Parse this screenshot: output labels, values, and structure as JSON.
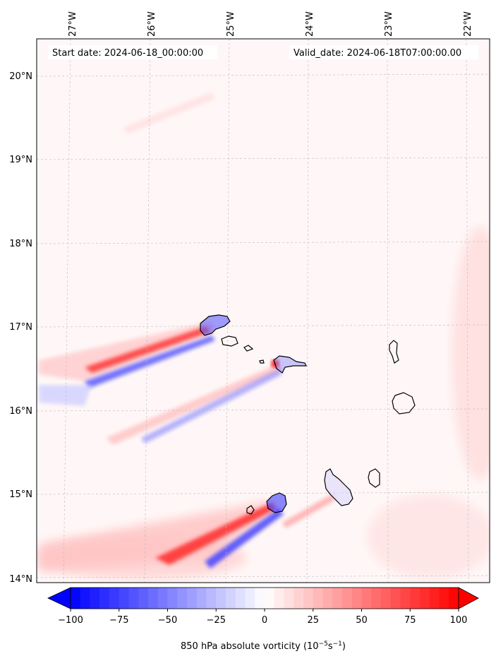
{
  "map": {
    "start_date_label": "Start date: 2024-06-18_00:00:00",
    "valid_date_label": "Valid_date: 2024-06-18T07:00:00.00",
    "lon_labels": [
      "27°W",
      "26°W",
      "25°W",
      "24°W",
      "23°W",
      "22°W"
    ],
    "lat_labels": [
      "20°N",
      "19°N",
      "18°N",
      "17°N",
      "16°N",
      "15°N",
      "14°N"
    ],
    "colorbar": {
      "ticks": [
        "−100",
        "−75",
        "−50",
        "−25",
        "0",
        "25",
        "50",
        "75",
        "100"
      ],
      "label_main": "850 hPa absolute vorticity (10",
      "label_exp1": "−5",
      "label_mid": "s",
      "label_exp2": "−1",
      "label_end": ")",
      "min_color": "#0000ff",
      "mid_color": "#ffffff",
      "max_color": "#ff0000"
    },
    "field_colors": {
      "positive_strong": "#ff2020",
      "positive_weak": "#ffd6d6",
      "negative_strong": "#3030ff",
      "negative_weak": "#d6d6ff",
      "background": "#fff7f7"
    }
  }
}
